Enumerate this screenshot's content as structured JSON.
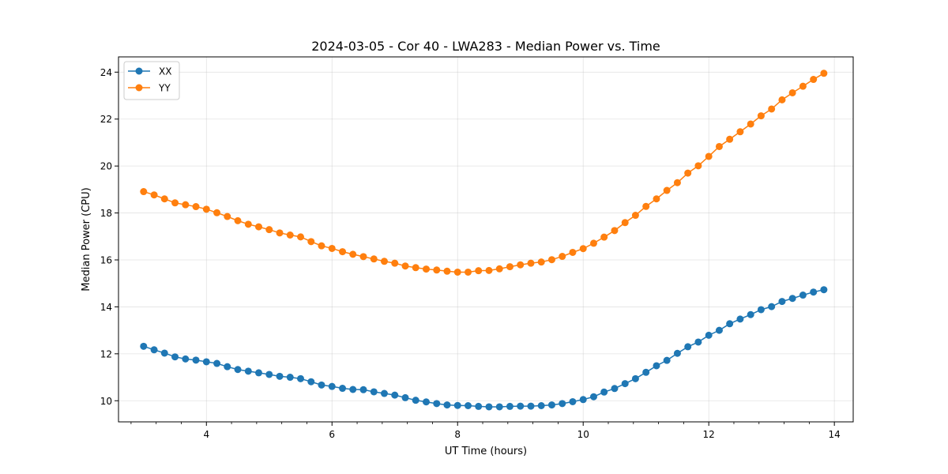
{
  "chart_data": {
    "type": "line",
    "title": "2024-03-05 - Cor 40 - LWA283 - Median Power vs. Time",
    "xlabel": "UT Time (hours)",
    "ylabel": "Median Power (CPU)",
    "xlim": [
      2.6,
      14.3
    ],
    "ylim": [
      9.1,
      24.65
    ],
    "xticks": [
      4,
      6,
      8,
      10,
      12,
      14
    ],
    "xtick_labels": [
      "4",
      "6",
      "8",
      "10",
      "12",
      "14"
    ],
    "xminor_step": 0.4,
    "yticks": [
      10,
      12,
      14,
      16,
      18,
      20,
      22,
      24
    ],
    "ytick_labels": [
      "10",
      "12",
      "14",
      "16",
      "18",
      "20",
      "22",
      "24"
    ],
    "grid": true,
    "legend_position": "top-left",
    "x": [
      3.0,
      3.167,
      3.333,
      3.5,
      3.667,
      3.833,
      4.0,
      4.167,
      4.333,
      4.5,
      4.667,
      4.833,
      5.0,
      5.167,
      5.333,
      5.5,
      5.667,
      5.833,
      6.0,
      6.167,
      6.333,
      6.5,
      6.667,
      6.833,
      7.0,
      7.167,
      7.333,
      7.5,
      7.667,
      7.833,
      8.0,
      8.167,
      8.333,
      8.5,
      8.667,
      8.833,
      9.0,
      9.167,
      9.333,
      9.5,
      9.667,
      9.833,
      10.0,
      10.167,
      10.333,
      10.5,
      10.667,
      10.833,
      11.0,
      11.167,
      11.333,
      11.5,
      11.667,
      11.833,
      12.0,
      12.167,
      12.333,
      12.5,
      12.667,
      12.833,
      13.0,
      13.167,
      13.333,
      13.5,
      13.667,
      13.833
    ],
    "series": [
      {
        "name": "XX",
        "color": "#1f77b4",
        "values": [
          12.32,
          12.17,
          12.03,
          11.87,
          11.78,
          11.73,
          11.66,
          11.59,
          11.45,
          11.33,
          11.26,
          11.19,
          11.12,
          11.04,
          11.0,
          10.94,
          10.81,
          10.67,
          10.61,
          10.53,
          10.48,
          10.47,
          10.38,
          10.31,
          10.24,
          10.13,
          10.02,
          9.95,
          9.88,
          9.82,
          9.8,
          9.79,
          9.76,
          9.74,
          9.74,
          9.76,
          9.77,
          9.77,
          9.79,
          9.82,
          9.88,
          9.96,
          10.05,
          10.17,
          10.37,
          10.52,
          10.73,
          10.94,
          11.21,
          11.49,
          11.72,
          12.02,
          12.3,
          12.5,
          12.79,
          13.0,
          13.28,
          13.48,
          13.67,
          13.88,
          14.01,
          14.23,
          14.36,
          14.5,
          14.63,
          14.73
        ]
      },
      {
        "name": "YY",
        "color": "#ff7f0e",
        "values": [
          18.91,
          18.77,
          18.6,
          18.43,
          18.35,
          18.27,
          18.16,
          18.01,
          17.85,
          17.67,
          17.52,
          17.41,
          17.29,
          17.15,
          17.06,
          16.98,
          16.78,
          16.6,
          16.49,
          16.35,
          16.24,
          16.14,
          16.04,
          15.94,
          15.86,
          15.74,
          15.67,
          15.61,
          15.57,
          15.52,
          15.48,
          15.48,
          15.54,
          15.55,
          15.62,
          15.71,
          15.79,
          15.86,
          15.91,
          16.01,
          16.15,
          16.32,
          16.48,
          16.71,
          16.97,
          17.25,
          17.59,
          17.9,
          18.28,
          18.6,
          18.96,
          19.29,
          19.7,
          20.01,
          20.41,
          20.83,
          21.14,
          21.46,
          21.79,
          22.14,
          22.43,
          22.82,
          23.12,
          23.4,
          23.69,
          23.95
        ]
      }
    ]
  }
}
